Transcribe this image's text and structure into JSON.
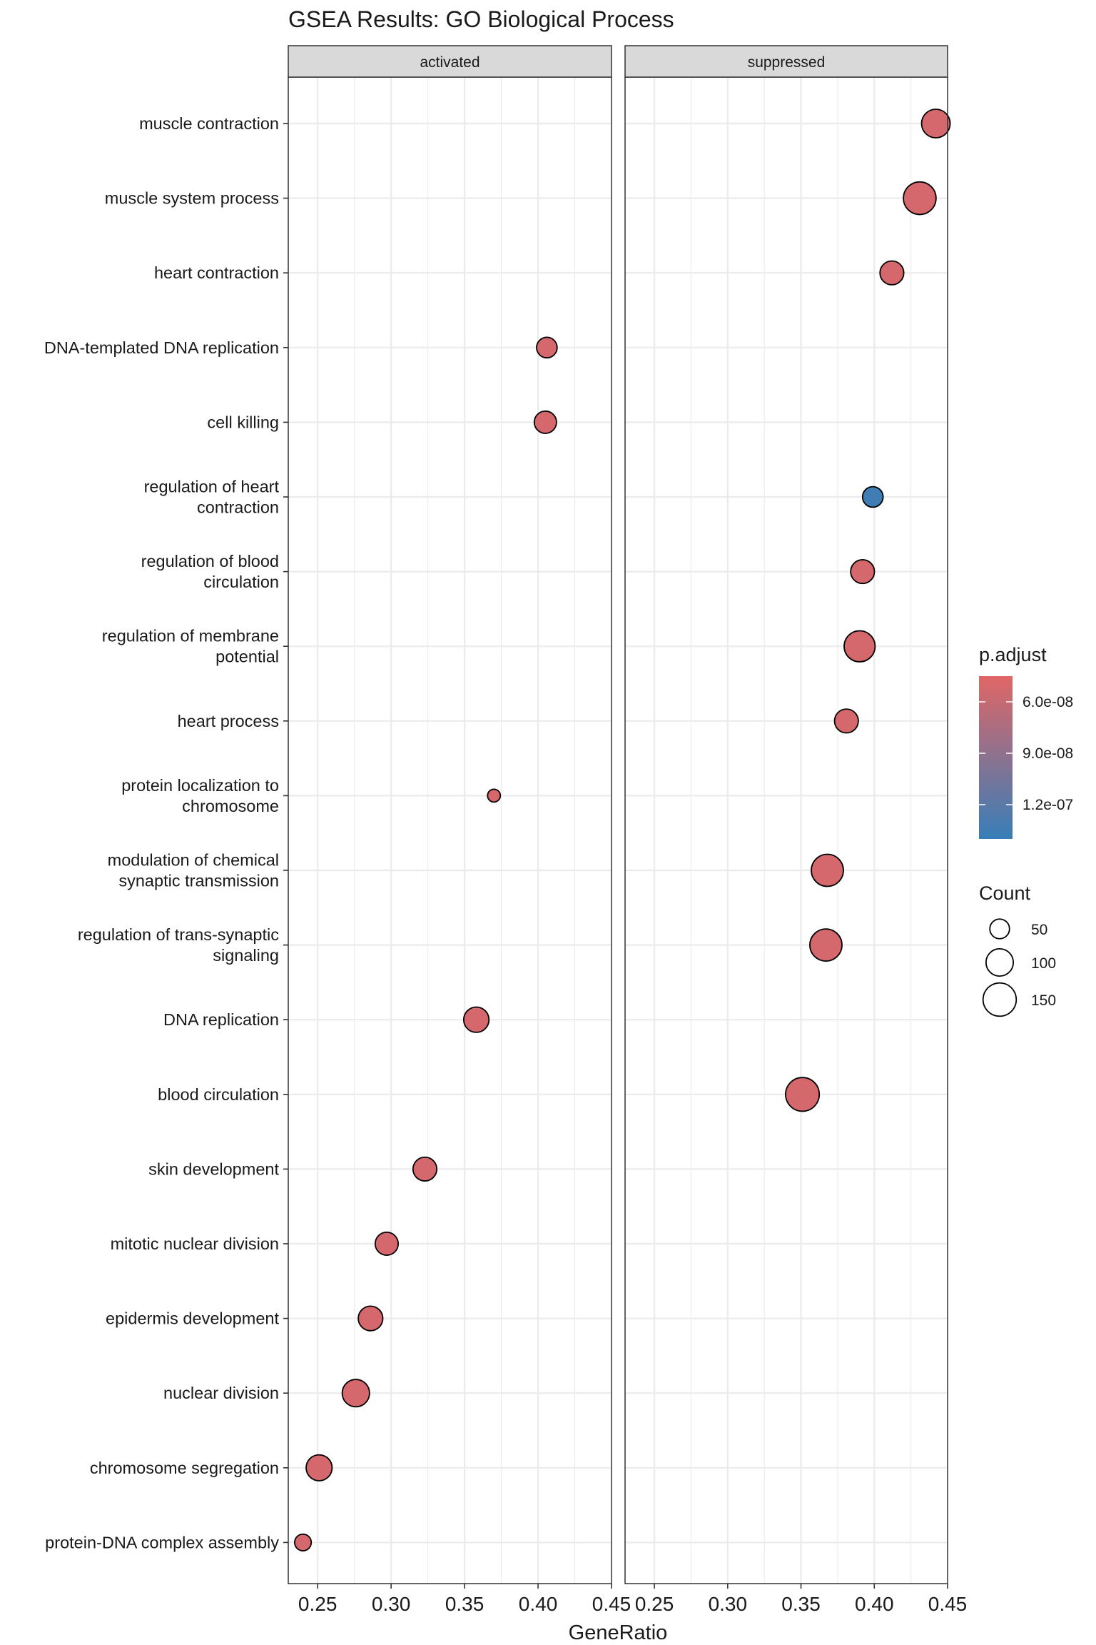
{
  "chart_data": {
    "type": "scatter",
    "title": "GSEA Results: GO Biological Process",
    "xlabel": "GeneRatio",
    "ylabel": "",
    "xlim": [
      0.23,
      0.45
    ],
    "x_ticks": [
      0.25,
      0.3,
      0.35,
      0.4,
      0.45
    ],
    "x_tick_labels": [
      "0.25",
      "0.30",
      "0.35",
      "0.40",
      "0.45"
    ],
    "panels": [
      "activated",
      "suppressed"
    ],
    "categories": [
      "muscle contraction",
      "muscle system process",
      "heart contraction",
      "DNA-templated DNA replication",
      "cell killing",
      "regulation of heart contraction",
      "regulation of blood circulation",
      "regulation of membrane potential",
      "heart process",
      "protein localization to chromosome",
      "modulation of chemical synaptic transmission",
      "regulation of trans-synaptic signaling",
      "DNA replication",
      "blood circulation",
      "skin development",
      "mitotic nuclear division",
      "epidermis development",
      "nuclear division",
      "chromosome segregation",
      "protein-DNA complex assembly"
    ],
    "category_label_lines": [
      [
        "muscle contraction"
      ],
      [
        "muscle system process"
      ],
      [
        "heart contraction"
      ],
      [
        "DNA-templated DNA replication"
      ],
      [
        "cell killing"
      ],
      [
        "regulation of heart",
        "contraction"
      ],
      [
        "regulation of blood",
        "circulation"
      ],
      [
        "regulation of membrane",
        "potential"
      ],
      [
        "heart process"
      ],
      [
        "protein localization to",
        "chromosome"
      ],
      [
        "modulation of chemical",
        "synaptic transmission"
      ],
      [
        "regulation of trans-synaptic",
        "signaling"
      ],
      [
        "DNA replication"
      ],
      [
        "blood circulation"
      ],
      [
        "skin development"
      ],
      [
        "mitotic nuclear division"
      ],
      [
        "epidermis development"
      ],
      [
        "nuclear division"
      ],
      [
        "chromosome segregation"
      ],
      [
        "protein-DNA complex assembly"
      ]
    ],
    "points": [
      {
        "term": "muscle contraction",
        "panel": "suppressed",
        "gene_ratio": 0.442,
        "count": 110,
        "p_adjust": 5.2e-08
      },
      {
        "term": "muscle system process",
        "panel": "suppressed",
        "gene_ratio": 0.431,
        "count": 145,
        "p_adjust": 5.2e-08
      },
      {
        "term": "heart contraction",
        "panel": "suppressed",
        "gene_ratio": 0.412,
        "count": 75,
        "p_adjust": 5.2e-08
      },
      {
        "term": "DNA-templated DNA replication",
        "panel": "activated",
        "gene_ratio": 0.406,
        "count": 55,
        "p_adjust": 5.2e-08
      },
      {
        "term": "cell killing",
        "panel": "activated",
        "gene_ratio": 0.405,
        "count": 65,
        "p_adjust": 5.2e-08
      },
      {
        "term": "regulation of heart contraction",
        "panel": "suppressed",
        "gene_ratio": 0.399,
        "count": 55,
        "p_adjust": 1.35e-07
      },
      {
        "term": "regulation of blood circulation",
        "panel": "suppressed",
        "gene_ratio": 0.392,
        "count": 75,
        "p_adjust": 5.2e-08
      },
      {
        "term": "regulation of membrane potential",
        "panel": "suppressed",
        "gene_ratio": 0.39,
        "count": 130,
        "p_adjust": 5.2e-08
      },
      {
        "term": "heart process",
        "panel": "suppressed",
        "gene_ratio": 0.381,
        "count": 75,
        "p_adjust": 5.2e-08
      },
      {
        "term": "protein localization to chromosome",
        "panel": "activated",
        "gene_ratio": 0.37,
        "count": 20,
        "p_adjust": 5.2e-08
      },
      {
        "term": "modulation of chemical synaptic transmission",
        "panel": "suppressed",
        "gene_ratio": 0.368,
        "count": 140,
        "p_adjust": 5.2e-08
      },
      {
        "term": "regulation of trans-synaptic signaling",
        "panel": "suppressed",
        "gene_ratio": 0.367,
        "count": 140,
        "p_adjust": 5.2e-08
      },
      {
        "term": "DNA replication",
        "panel": "activated",
        "gene_ratio": 0.358,
        "count": 85,
        "p_adjust": 5.2e-08
      },
      {
        "term": "blood circulation",
        "panel": "suppressed",
        "gene_ratio": 0.351,
        "count": 155,
        "p_adjust": 5.2e-08
      },
      {
        "term": "skin development",
        "panel": "activated",
        "gene_ratio": 0.323,
        "count": 75,
        "p_adjust": 5.2e-08
      },
      {
        "term": "mitotic nuclear division",
        "panel": "activated",
        "gene_ratio": 0.297,
        "count": 70,
        "p_adjust": 5.2e-08
      },
      {
        "term": "epidermis development",
        "panel": "activated",
        "gene_ratio": 0.286,
        "count": 80,
        "p_adjust": 5.2e-08
      },
      {
        "term": "nuclear division",
        "panel": "activated",
        "gene_ratio": 0.276,
        "count": 100,
        "p_adjust": 5.2e-08
      },
      {
        "term": "chromosome segregation",
        "panel": "activated",
        "gene_ratio": 0.251,
        "count": 90,
        "p_adjust": 5.2e-08
      },
      {
        "term": "protein-DNA complex assembly",
        "panel": "activated",
        "gene_ratio": 0.24,
        "count": 35,
        "p_adjust": 5.2e-08
      }
    ],
    "color_legend": {
      "title": "p.adjust",
      "range": [
        4.5e-08,
        1.4e-07
      ],
      "ticks": [
        6e-08,
        9e-08,
        1.2e-07
      ],
      "tick_labels": [
        "6.0e-08",
        "9.0e-08",
        "1.2e-07"
      ],
      "low_color": "#e06666",
      "high_color": "#377eb8"
    },
    "size_legend": {
      "title": "Count",
      "values": [
        50,
        100,
        150
      ],
      "labels": [
        "50",
        "100",
        "150"
      ]
    },
    "grid": true,
    "legend_position": "right"
  }
}
